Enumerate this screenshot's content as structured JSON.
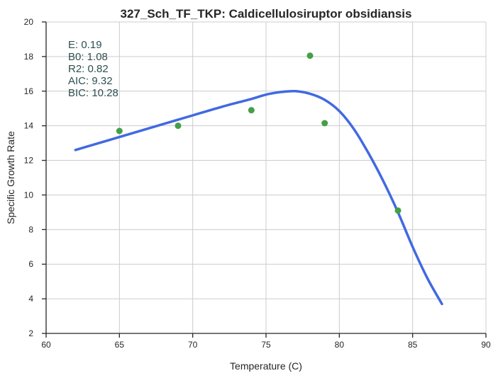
{
  "chart_data": {
    "type": "scatter",
    "title": "327_Sch_TF_TKP: Caldicellulosiruptor obsidiansis",
    "xlabel": "Temperature (C)",
    "ylabel": "Specific Growth Rate",
    "xlim": [
      60,
      90
    ],
    "ylim": [
      2,
      20
    ],
    "xticks": [
      "60",
      "65",
      "70",
      "75",
      "80",
      "85",
      "90"
    ],
    "yticks": [
      "2",
      "4",
      "6",
      "8",
      "10",
      "12",
      "14",
      "16",
      "18",
      "20"
    ],
    "grid": true,
    "colors": {
      "points": "#43a047",
      "fit": "#4169e1"
    },
    "series": [
      {
        "type": "scatter",
        "x": [
          65,
          69,
          74,
          78,
          79,
          84
        ],
        "y": [
          13.7,
          14.0,
          14.9,
          18.05,
          14.15,
          9.1
        ]
      },
      {
        "type": "line",
        "x": [
          62,
          64,
          66,
          68,
          70,
          72,
          74,
          75,
          76,
          77,
          78,
          79,
          80,
          81,
          82,
          83,
          84,
          85,
          86,
          87
        ],
        "y": [
          12.6,
          13.1,
          13.6,
          14.1,
          14.6,
          15.1,
          15.55,
          15.8,
          15.95,
          16.0,
          15.85,
          15.5,
          14.85,
          13.8,
          12.4,
          10.8,
          9.0,
          7.0,
          5.2,
          3.7
        ]
      }
    ],
    "annotations": [
      "E:  0.19",
      "B0:  1.08",
      "R2:  0.82",
      "AIC: 9.32",
      "BIC: 10.28"
    ]
  }
}
